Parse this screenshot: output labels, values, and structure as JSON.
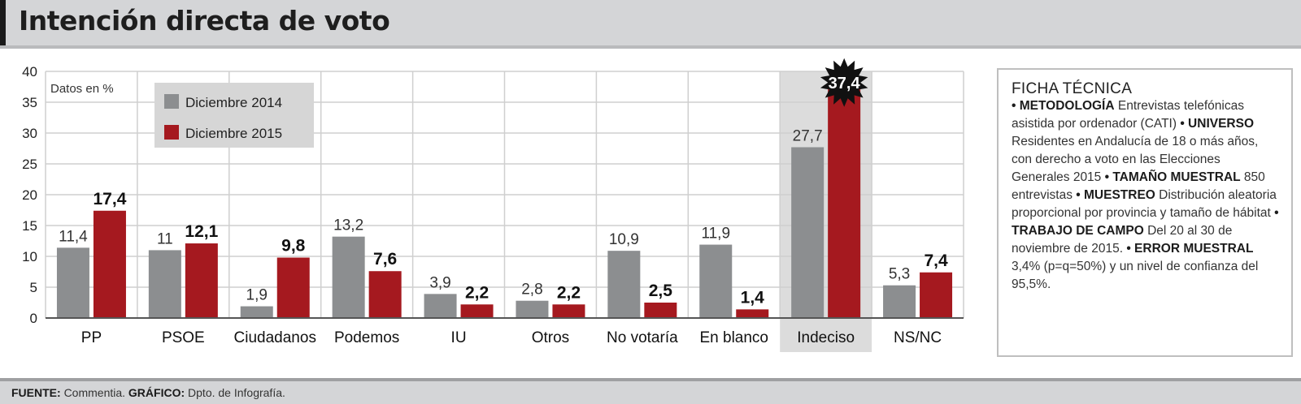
{
  "title": "Intención directa de voto",
  "ficha": {
    "title": "FICHA TÉCNICA",
    "bullet": "•",
    "items": [
      {
        "label": "METODOLOGÍA",
        "text": "Entrevistas telefónicas asistida por ordenador (CATI)"
      },
      {
        "label": "UNIVERSO",
        "text": "Residentes en Andalucía de 18 o más años, con derecho a voto en las Elecciones Generales 2015"
      },
      {
        "label": "TAMAÑO MUESTRAL",
        "text": "850 entrevistas"
      },
      {
        "label": "MUESTREO",
        "text": "Distribución aleatoria proporcional por provincia y tamaño de hábitat"
      },
      {
        "label": "TRABAJO DE CAMPO",
        "text": "Del 20 al 30 de noviembre de 2015."
      },
      {
        "label": "ERROR MUESTRAL",
        "text": "3,4% (p=q=50%) y un nivel de confianza del 95,5%."
      }
    ]
  },
  "footer": {
    "source_label": "FUENTE:",
    "source": "Commentia.",
    "graphic_label": "GRÁFICO:",
    "graphic": "Dpto. de Infografía."
  },
  "chart_data": {
    "type": "bar",
    "unit_note": "Datos en %",
    "categories": [
      "PP",
      "PSOE",
      "Ciudadanos",
      "Podemos",
      "IU",
      "Otros",
      "No votaría",
      "En blanco",
      "Indeciso",
      "NS/NC"
    ],
    "series": [
      {
        "name": "Diciembre 2014",
        "color": "#8c8e90",
        "values": [
          11.4,
          11,
          1.9,
          13.2,
          3.9,
          2.8,
          10.9,
          11.9,
          27.7,
          5.3
        ],
        "labels": [
          "11,4",
          "11",
          "1,9",
          "13,2",
          "3,9",
          "2,8",
          "10,9",
          "11,9",
          "27,7",
          "5,3"
        ]
      },
      {
        "name": "Diciembre 2015",
        "color": "#a5191f",
        "values": [
          17.4,
          12.1,
          9.8,
          7.6,
          2.2,
          2.2,
          2.5,
          1.4,
          37.4,
          7.4
        ],
        "labels": [
          "17,4",
          "12,1",
          "9,8",
          "7,6",
          "2,2",
          "2,2",
          "2,5",
          "1,4",
          "37,4",
          "7,4"
        ]
      }
    ],
    "yticks": [
      "0",
      "5",
      "10",
      "15",
      "20",
      "25",
      "30",
      "35",
      "40"
    ],
    "ylim": [
      0,
      40
    ],
    "highlight_category": "Indeciso",
    "legend_position": "top-left",
    "grid": true
  }
}
